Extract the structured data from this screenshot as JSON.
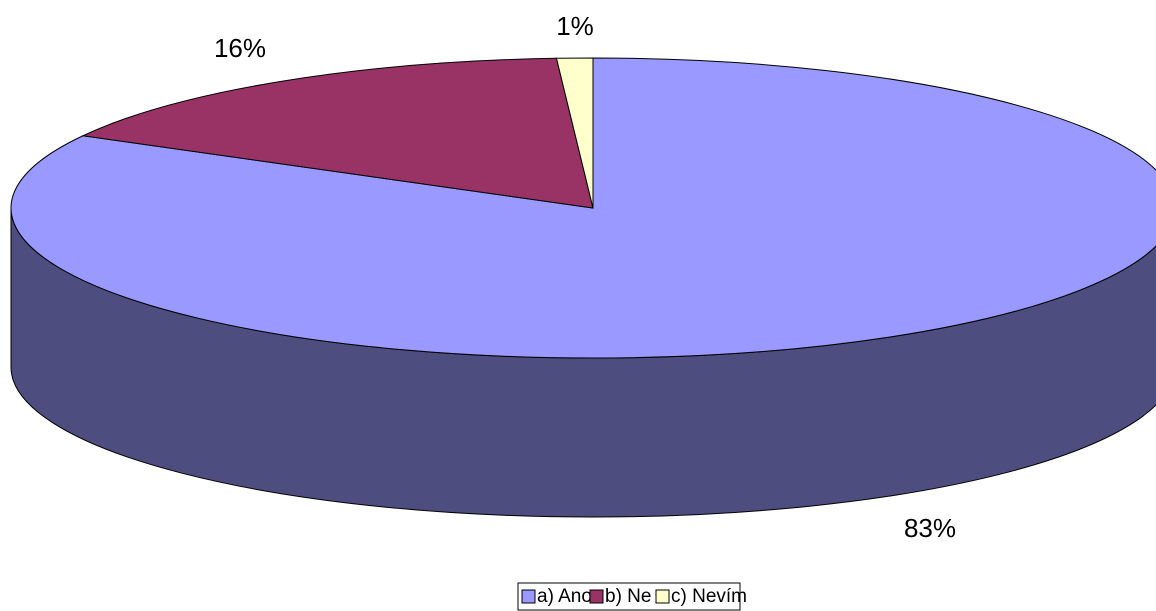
{
  "chart_data": {
    "type": "pie",
    "categories": [
      "a) Ano",
      "b) Ne",
      "c) Nevím"
    ],
    "values": [
      83,
      16,
      1
    ],
    "value_labels": [
      "83%",
      "16%",
      "1%"
    ],
    "colors": [
      "#9999ff",
      "#993366",
      "#ffffcc"
    ],
    "legend": "bottom"
  }
}
